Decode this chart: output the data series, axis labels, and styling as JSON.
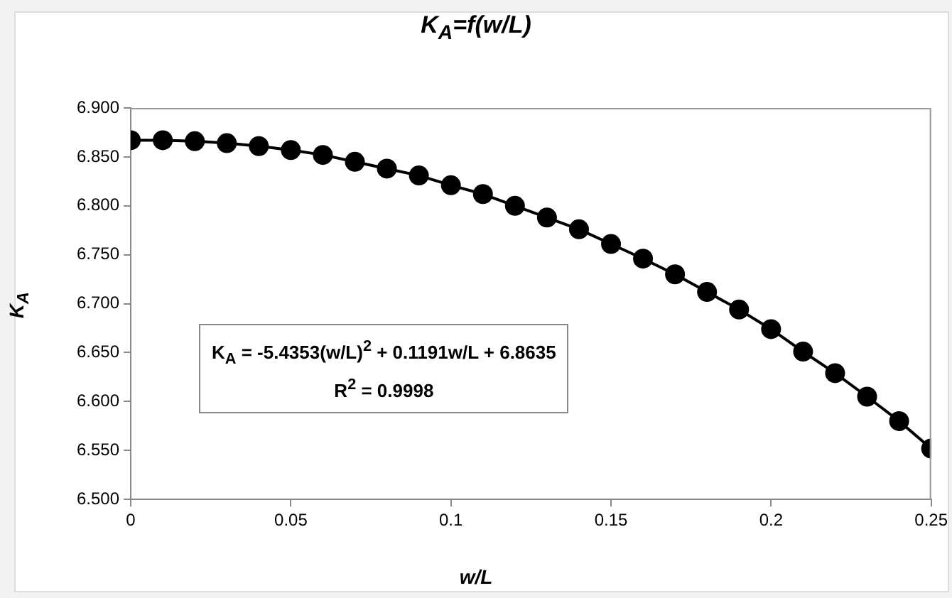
{
  "chart_data": {
    "type": "scatter",
    "title": "K$_{A}$=f(w/L)",
    "xlabel": "w/L",
    "ylabel": "K$_{A}$",
    "annotations": [
      "K$_{A}$ = -5.4353(w/L)$^{2}$ + 0.1191w/L + 6.8635",
      "R$^{2}$ = 0.9998"
    ],
    "x": [
      0,
      0.01,
      0.02,
      0.03,
      0.04,
      0.05,
      0.06,
      0.07,
      0.08,
      0.09,
      0.1,
      0.11,
      0.12,
      0.13,
      0.14,
      0.15,
      0.16,
      0.17,
      0.18,
      0.19,
      0.2,
      0.21,
      0.22,
      0.23,
      0.24,
      0.25
    ],
    "series": [
      {
        "type": "line",
        "color": "#000000",
        "marker": "none",
        "values": [
          6.867,
          6.867,
          6.866,
          6.864,
          6.861,
          6.857,
          6.852,
          6.845,
          6.838,
          6.831,
          6.821,
          6.812,
          6.8,
          6.788,
          6.776,
          6.761,
          6.746,
          6.73,
          6.712,
          6.694,
          6.674,
          6.651,
          6.629,
          6.605,
          6.58,
          6.552
        ]
      },
      {
        "type": "scatter",
        "color": "#000000",
        "marker": "circle",
        "values": [
          6.867,
          6.867,
          6.866,
          6.864,
          6.861,
          6.857,
          6.852,
          6.845,
          6.838,
          6.831,
          6.821,
          6.812,
          6.8,
          6.788,
          6.776,
          6.761,
          6.746,
          6.73,
          6.712,
          6.694,
          6.674,
          6.651,
          6.629,
          6.605,
          6.58,
          6.552
        ]
      }
    ],
    "xlim": [
      0,
      0.25
    ],
    "xticks": [
      0,
      0.05,
      0.1,
      0.15,
      0.2,
      0.25
    ],
    "ylim": [
      6.5,
      6.9
    ],
    "yticks": [
      {
        "value": 6.5,
        "label": "6.500"
      },
      {
        "value": 6.55,
        "label": "6.550"
      },
      {
        "value": 6.6,
        "label": "6.600"
      },
      {
        "value": 6.65,
        "label": "6.650"
      },
      {
        "value": 6.7,
        "label": "6.700"
      },
      {
        "value": 6.75,
        "label": "6.750"
      },
      {
        "value": 6.8,
        "label": "6.800"
      },
      {
        "value": 6.85,
        "label": "6.850"
      },
      {
        "value": 6.9,
        "label": "6.900"
      }
    ],
    "grid": false,
    "legend": false
  }
}
